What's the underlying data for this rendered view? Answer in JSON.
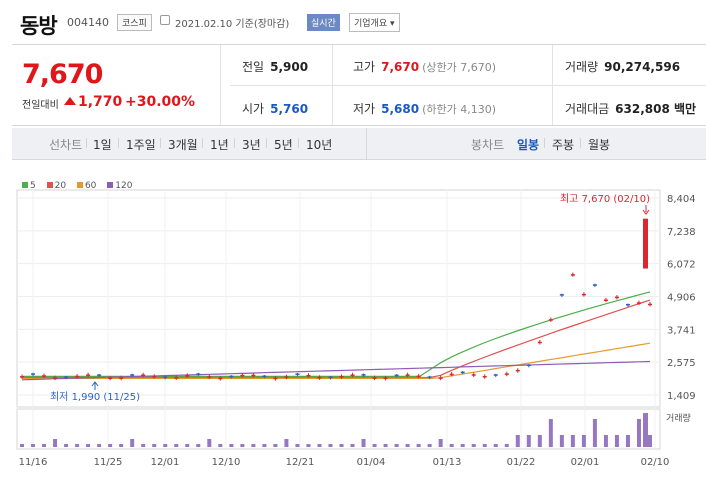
{
  "header": {
    "name": "동방",
    "code": "004140",
    "market": "코스피",
    "date": "2021.02.10 기준(장마감)",
    "realtime": "실시간",
    "company_info": "기업개요 ▾"
  },
  "quote": {
    "price": "7,670",
    "change_label": "전일대비",
    "change": "1,770",
    "change_pct": "+30.00%",
    "prev_label": "전일",
    "prev": "5,900",
    "open_label": "시가",
    "open": "5,760",
    "high_label": "고가",
    "high": "7,670",
    "upper_limit": "(상한가 7,670)",
    "low_label": "저가",
    "low": "5,680",
    "lower_limit": "(하한가 4,130)",
    "volume_label": "거래량",
    "volume": "90,274,596",
    "amount_label": "거래대금",
    "amount": "632,808 백만"
  },
  "tabs": {
    "line_label": "선차트",
    "line_tabs": [
      "1일",
      "1주일",
      "3개월",
      "1년",
      "3년",
      "5년",
      "10년"
    ],
    "candle_label": "봉차트",
    "candle_tabs": [
      "일봉",
      "주봉",
      "월봉"
    ],
    "candle_selected": "일봉"
  },
  "legend": [
    {
      "label": "5",
      "color": "#4cae4c"
    },
    {
      "label": "20",
      "color": "#e0524e"
    },
    {
      "label": "60",
      "color": "#e69a2a"
    },
    {
      "label": "120",
      "color": "#8e5bb5"
    }
  ],
  "annotations": {
    "high": "최고 7,670 (02/10)",
    "low": "최저 1,990 (11/25)",
    "volume_label": "거래량"
  },
  "chart_data": {
    "type": "candlestick",
    "y_ticks": [
      "8,404",
      "7,238",
      "6,072",
      "4,906",
      "3,741",
      "2,575",
      "1,409"
    ],
    "x_ticks": [
      "11/16",
      "11/25",
      "12/01",
      "12/10",
      "12/21",
      "01/04",
      "01/13",
      "01/22",
      "02/01",
      "02/10"
    ],
    "ylim": [
      1409,
      8404
    ],
    "high_point": 7670,
    "low_point": 1990
  }
}
